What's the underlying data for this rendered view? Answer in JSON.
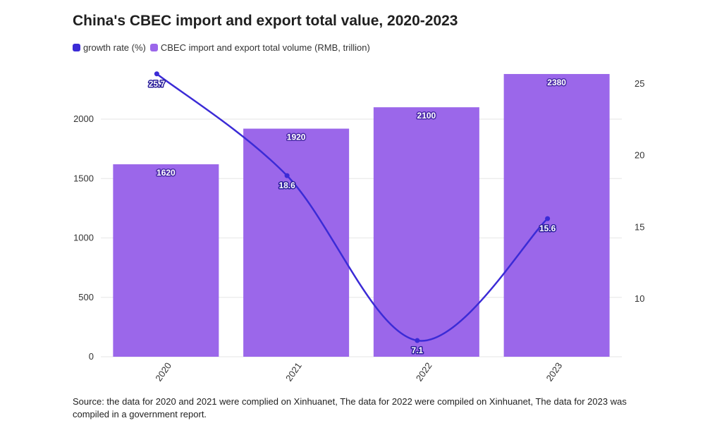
{
  "title": "China's CBEC import and export total value, 2020-2023",
  "legend": [
    {
      "label": "growth rate (%)",
      "color": "#3b2bd6"
    },
    {
      "label": "CBEC import and export total volume (RMB, trillion)",
      "color": "#9b67ea"
    }
  ],
  "source": "Source: the data for 2020 and 2021 were complied on Xinhuanet, The data for 2022 were compiled on Xinhuanet, The data for 2023 was compiled in a government report.",
  "chart_data": {
    "type": "bar",
    "categories": [
      "2020",
      "2021",
      "2022",
      "2023"
    ],
    "series": [
      {
        "name": "CBEC import and export total volume (RMB, trillion)",
        "type": "bar",
        "axis": "left",
        "color": "#9b67ea",
        "values": [
          1620,
          1920,
          2100,
          2380
        ]
      },
      {
        "name": "growth rate (%)",
        "type": "line",
        "axis": "right",
        "color": "#3b2bd6",
        "values": [
          25.7,
          18.6,
          7.1,
          15.6
        ]
      }
    ],
    "left_axis": {
      "ticks": [
        0,
        500,
        1000,
        1500,
        2000
      ],
      "ylim": [
        0,
        2400
      ]
    },
    "right_axis": {
      "ticks": [
        10,
        15,
        20,
        25
      ],
      "ylim": [
        5.96,
        26.12
      ]
    },
    "grid": true,
    "legend_position": "top-left"
  }
}
